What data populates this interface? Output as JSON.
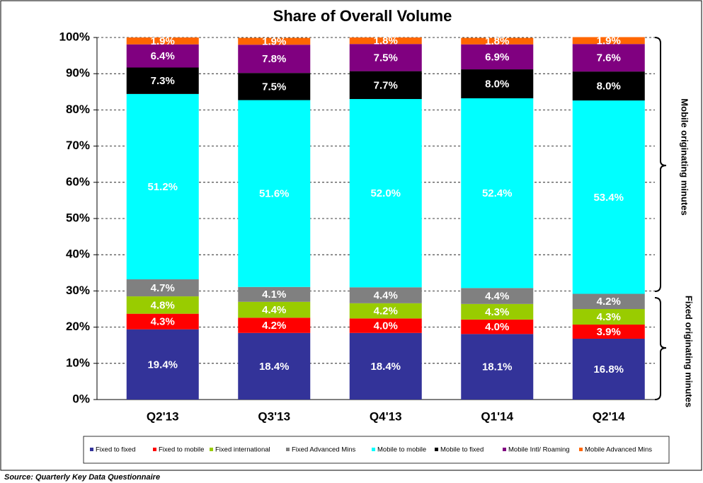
{
  "chart_data": {
    "type": "stacked_bar",
    "title": "Share of Overall Volume",
    "categories": [
      "Q2'13",
      "Q3'13",
      "Q4'13",
      "Q1'14",
      "Q2'14"
    ],
    "series": [
      {
        "name": "Fixed to fixed",
        "color": "#333399",
        "values": [
          19.4,
          18.4,
          18.4,
          18.1,
          16.8
        ],
        "value_labels": [
          "19.4%",
          "18.4%",
          "18.4%",
          "18.1%",
          "16.8%"
        ]
      },
      {
        "name": "Fixed to mobile",
        "color": "#ff0000",
        "values": [
          4.3,
          4.2,
          4.0,
          4.0,
          3.9
        ],
        "value_labels": [
          "4.3%",
          "4.2%",
          "4.0%",
          "4.0%",
          "3.9%"
        ]
      },
      {
        "name": "Fixed international",
        "color": "#99cc00",
        "values": [
          4.8,
          4.4,
          4.2,
          4.3,
          4.3
        ],
        "value_labels": [
          "4.8%",
          "4.4%",
          "4.2%",
          "4.3%",
          "4.3%"
        ]
      },
      {
        "name": "Fixed Advanced Mins",
        "color": "#808080",
        "values": [
          4.7,
          4.1,
          4.4,
          4.4,
          4.2
        ],
        "value_labels": [
          "4.7%",
          "4.1%",
          "4.4%",
          "4.4%",
          "4.2%"
        ]
      },
      {
        "name": "Mobile to mobile",
        "color": "#00ffff",
        "values": [
          51.2,
          51.6,
          52.0,
          52.4,
          53.4
        ],
        "value_labels": [
          "51.2%",
          "51.6%",
          "52.0%",
          "52.4%",
          "53.4%"
        ]
      },
      {
        "name": "Mobile to fixed",
        "color": "#000000",
        "values": [
          7.3,
          7.5,
          7.7,
          8.0,
          8.0
        ],
        "value_labels": [
          "7.3%",
          "7.5%",
          "7.7%",
          "8.0%",
          "8.0%"
        ]
      },
      {
        "name": "Mobile Intl/ Roaming",
        "color": "#800080",
        "values": [
          6.4,
          7.8,
          7.5,
          6.9,
          7.6
        ],
        "value_labels": [
          "6.4%",
          "7.8%",
          "7.5%",
          "6.9%",
          "7.6%"
        ]
      },
      {
        "name": "Mobile Advanced Mins",
        "color": "#ff6600",
        "values": [
          1.9,
          1.9,
          1.8,
          1.8,
          1.9
        ],
        "value_labels": [
          "1.9%",
          "1.9%",
          "1.8%",
          "1.8%",
          "1.9%"
        ]
      }
    ],
    "ylim": [
      0,
      100
    ],
    "yticks": [
      {
        "value": 0,
        "label": "0%"
      },
      {
        "value": 10,
        "label": "10%"
      },
      {
        "value": 20,
        "label": "20%"
      },
      {
        "value": 30,
        "label": "30%"
      },
      {
        "value": 40,
        "label": "40%"
      },
      {
        "value": 50,
        "label": "50%"
      },
      {
        "value": 60,
        "label": "60%"
      },
      {
        "value": 70,
        "label": "70%"
      },
      {
        "value": 80,
        "label": "80%"
      },
      {
        "value": 90,
        "label": "90%"
      },
      {
        "value": 100,
        "label": "100%"
      }
    ],
    "grid": true,
    "legend": "bottom",
    "annotations": [
      "Mobile originating minutes",
      "Fixed originating minutes"
    ],
    "source": "Source:  Quarterly Key Data Questionnaire"
  }
}
